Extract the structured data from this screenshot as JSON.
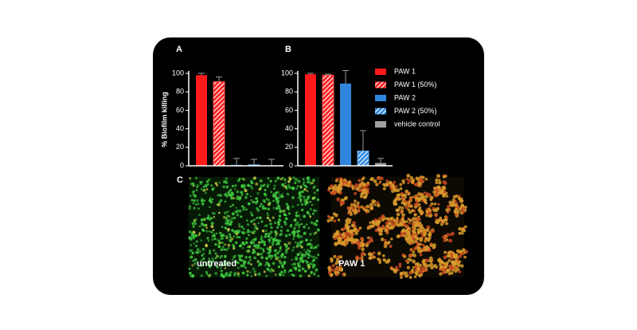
{
  "chart_data": [
    {
      "type": "bar",
      "panel_label": "A",
      "y_label": "% Biofilm killing",
      "values": [
        98,
        91,
        1,
        1,
        0
      ],
      "errors": [
        2,
        5,
        7,
        6,
        7
      ],
      "colors": [
        "#ff1a1a",
        "#ff4d4d",
        "#2e86de",
        "#5aa9f0",
        "#a0a0a0"
      ],
      "hatched": [
        false,
        true,
        false,
        true,
        false
      ],
      "ylim": [
        0,
        100
      ],
      "yticks": [
        0,
        20,
        40,
        60,
        80,
        100
      ]
    },
    {
      "type": "bar",
      "panel_label": "B",
      "series": [
        {
          "name": "PAW 1",
          "color": "#ff1a1a",
          "hatched": false,
          "values": [
            99
          ],
          "errors": [
            1
          ]
        },
        {
          "name": "PAW 1 (50%)",
          "color": "#ff4d4d",
          "hatched": true,
          "values": [
            98
          ],
          "errors": [
            1
          ]
        },
        {
          "name": "PAW 2",
          "color": "#2e86de",
          "hatched": false,
          "values": [
            89
          ],
          "errors": [
            14
          ]
        },
        {
          "name": "PAW 2 (50%)",
          "color": "#5aa9f0",
          "hatched": true,
          "values": [
            16
          ],
          "errors": [
            22
          ]
        },
        {
          "name": "vehicle control",
          "color": "#a0a0a0",
          "hatched": false,
          "values": [
            3
          ],
          "errors": [
            5
          ]
        }
      ],
      "ylim": [
        0,
        100
      ],
      "yticks": [
        0,
        20,
        40,
        60,
        80,
        100
      ],
      "legend": "right"
    }
  ],
  "panel_c": {
    "label": "C",
    "images": [
      {
        "label": "untreated"
      },
      {
        "label": "PAW 1"
      }
    ]
  }
}
